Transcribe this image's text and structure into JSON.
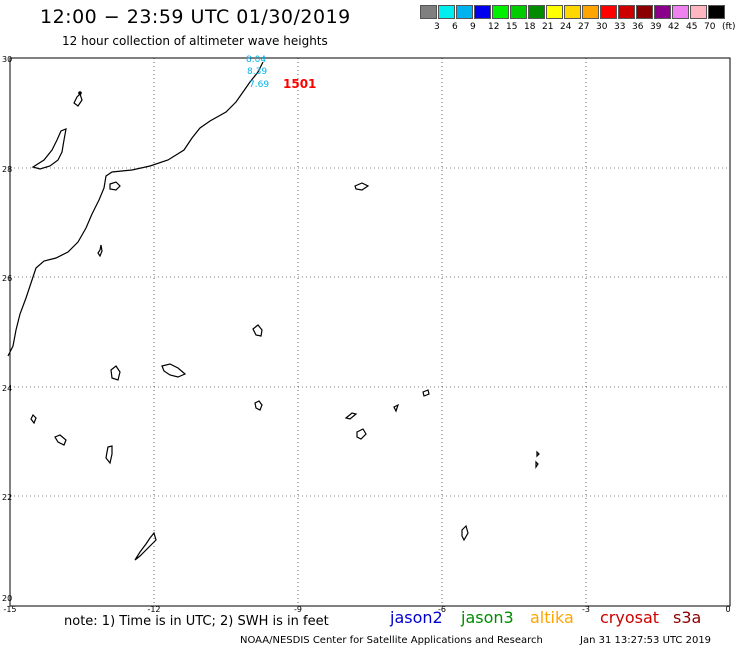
{
  "header": {
    "title": "12:00 − 23:59 UTC 01/30/2019",
    "subtitle": "12 hour collection of altimeter wave heights"
  },
  "color_scale": {
    "swatches": [
      "#7f7f7f",
      "#00eeee",
      "#00b2ee",
      "#0000ee",
      "#00ee00",
      "#00cd00",
      "#008b00",
      "#ffff00",
      "#ffd700",
      "#ffa500",
      "#ff0000",
      "#cd0000",
      "#8b0000",
      "#8b008b",
      "#ee82ee",
      "#ffb6c1",
      "#000000"
    ],
    "labels": [
      "3",
      "6",
      "9",
      "12",
      "15",
      "18",
      "21",
      "24",
      "27",
      "30",
      "33",
      "36",
      "39",
      "42",
      "45",
      "70",
      "(ft)"
    ]
  },
  "map": {
    "lat_labels": [
      "30",
      "28",
      "26",
      "24",
      "22",
      "20"
    ],
    "lon_labels": [
      "-15",
      "-12",
      "-9",
      "-6",
      "-3",
      "0"
    ],
    "wave_labels": [
      {
        "text": "8.04",
        "color": "#00b2ee"
      },
      {
        "text": "8.39",
        "color": "#00b2ee"
      },
      {
        "text": "7.69",
        "color": "#00b2ee"
      }
    ],
    "pass_label": {
      "text": "1501",
      "color": "#ff0000"
    }
  },
  "footer": {
    "note": "note:  1) Time is in UTC;  2) SWH is in feet",
    "missions": [
      {
        "name": "jason2",
        "color": "#0000cd"
      },
      {
        "name": "jason3",
        "color": "#008b00"
      },
      {
        "name": "altika",
        "color": "#ffa500"
      },
      {
        "name": "cryosat",
        "color": "#cd0000"
      },
      {
        "name": "s3a",
        "color": "#8b0000"
      }
    ],
    "credit": "NOAA/NESDIS Center for Satellite Applications and Research",
    "timestamp": "Jan 31 13:27:53 UTC 2019"
  }
}
